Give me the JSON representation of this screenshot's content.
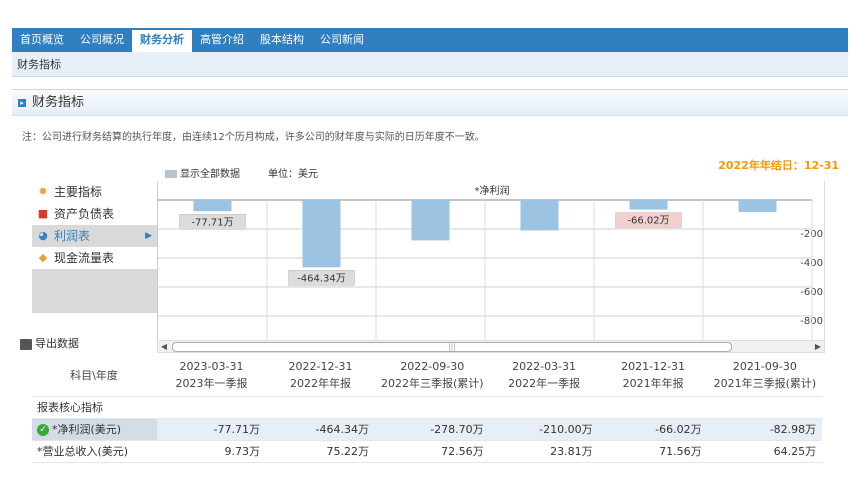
{
  "nav": {
    "tabs": [
      "首页概览",
      "公司概况",
      "财务分析",
      "高管介绍",
      "股本结构",
      "公司新闻"
    ]
  },
  "subnav": {
    "label": "财务指标"
  },
  "section": {
    "title": "财务指标"
  },
  "note": "注：公司进行财务结算的执行年度，由连续12个历月构成，许多公司的财年度与实际的日历年度不一致。",
  "year_end": "2022年年结日：12-31",
  "controls": {
    "show_all": "显示全部数据",
    "unit": "单位：美元"
  },
  "menu": {
    "items": [
      "主要指标",
      "资产负债表",
      "利润表",
      "现金流量表"
    ]
  },
  "export_label": "导出数据",
  "chart_data": {
    "type": "bar",
    "title": "*净利润",
    "categories": [
      "2023年一季报",
      "2022年年报",
      "2022年三季报(累计)",
      "2022年一季报",
      "2021年年报",
      "2021年三季报(累计)"
    ],
    "values": [
      -77.71,
      -464.34,
      -278.7,
      -210.0,
      -66.02,
      -82.98
    ],
    "data_labels": [
      "-77.71万",
      "-464.34万",
      "",
      "",
      "-66.02万",
      ""
    ],
    "ylim": [
      -900,
      0
    ],
    "yticks": [
      "-200",
      "-400",
      "-600",
      "-800"
    ],
    "colors": {
      "bar": "#9dc3e2",
      "label_bg": "#dcdcdc",
      "label_bg_highlight": "#f4cfcf"
    }
  },
  "table": {
    "header_label": "科目\\年度",
    "columns": [
      {
        "date": "2023-03-31",
        "period": "2023年一季报"
      },
      {
        "date": "2022-12-31",
        "period": "2022年年报"
      },
      {
        "date": "2022-09-30",
        "period": "2022年三季报(累计)"
      },
      {
        "date": "2022-03-31",
        "period": "2022年一季报"
      },
      {
        "date": "2021-12-31",
        "period": "2021年年报"
      },
      {
        "date": "2021-09-30",
        "period": "2021年三季报(累计)"
      }
    ],
    "group_label": "报表核心指标",
    "rows": [
      {
        "label": "*净利润(美元)",
        "values": [
          "-77.71万",
          "-464.34万",
          "-278.70万",
          "-210.00万",
          "-66.02万",
          "-82.98万"
        ]
      },
      {
        "label": "*营业总收入(美元)",
        "values": [
          "9.73万",
          "75.22万",
          "72.56万",
          "23.81万",
          "71.56万",
          "64.25万"
        ]
      }
    ]
  }
}
